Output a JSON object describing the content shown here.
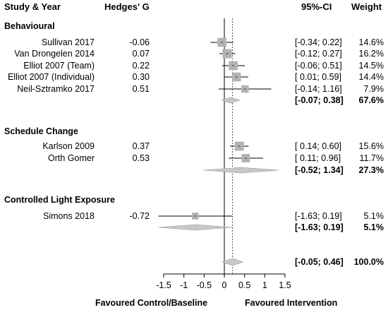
{
  "headers": {
    "study": "Study & Year",
    "effect": "Hedges' G",
    "ci": "95%-CI",
    "weight": "Weight"
  },
  "footer": {
    "left": "Favoured Control/Baseline",
    "right": "Favoured Intervention"
  },
  "chart_data": {
    "type": "forest",
    "xlim": [
      -1.5,
      1.5
    ],
    "x_ticks": [
      "-1.5",
      "-1",
      "-0.5",
      "0",
      "0.5",
      "1",
      "1.5"
    ],
    "x_tick_values": [
      -1.5,
      -1,
      -0.5,
      0,
      0.5,
      1,
      1.5
    ],
    "overall_reference_line": 0.2,
    "groups": [
      {
        "name": "Behavioural",
        "studies": [
          {
            "label": "Sullivan 2017",
            "g": -0.06,
            "g_text": "-0.06",
            "lo": -0.34,
            "hi": 0.22,
            "ci_text": "[-0.34; 0.22]",
            "weight": 14.6,
            "weight_text": "14.6%"
          },
          {
            "label": "Van Drongelen 2014",
            "g": 0.07,
            "g_text": "0.07",
            "lo": -0.12,
            "hi": 0.27,
            "ci_text": "[-0.12; 0.27]",
            "weight": 16.2,
            "weight_text": "16.2%"
          },
          {
            "label": "Elliot 2007 (Team)",
            "g": 0.22,
            "g_text": "0.22",
            "lo": -0.06,
            "hi": 0.51,
            "ci_text": "[-0.06; 0.51]",
            "weight": 14.5,
            "weight_text": "14.5%"
          },
          {
            "label": "Elliot 2007 (Individual)",
            "g": 0.3,
            "g_text": "0.30",
            "lo": 0.01,
            "hi": 0.59,
            "ci_text": "[ 0.01; 0.59]",
            "weight": 14.4,
            "weight_text": "14.4%"
          },
          {
            "label": "Neil-Sztramko 2017",
            "g": 0.51,
            "g_text": "0.51",
            "lo": -0.14,
            "hi": 1.16,
            "ci_text": "[-0.14; 1.16]",
            "weight": 7.9,
            "weight_text": "7.9%"
          }
        ],
        "summary": {
          "est": 0.155,
          "lo": -0.07,
          "hi": 0.38,
          "ci_text": "[-0.07; 0.38]",
          "weight_text": "67.6%"
        }
      },
      {
        "name": "Schedule Change",
        "studies": [
          {
            "label": "Karlson 2009",
            "g": 0.37,
            "g_text": "0.37",
            "lo": 0.14,
            "hi": 0.6,
            "ci_text": "[ 0.14; 0.60]",
            "weight": 15.6,
            "weight_text": "15.6%"
          },
          {
            "label": "Orth Gomer",
            "g": 0.53,
            "g_text": "0.53",
            "lo": 0.11,
            "hi": 0.96,
            "ci_text": "[ 0.11; 0.96]",
            "weight": 11.7,
            "weight_text": "11.7%"
          }
        ],
        "summary": {
          "est": 0.41,
          "lo": -0.52,
          "hi": 1.34,
          "ci_text": "[-0.52; 1.34]",
          "weight_text": "27.3%"
        }
      },
      {
        "name": "Controlled Light Exposure",
        "studies": [
          {
            "label": "Simons 2018",
            "g": -0.72,
            "g_text": "-0.72",
            "lo": -1.63,
            "hi": 0.19,
            "ci_text": "[-1.63; 0.19]",
            "weight": 5.1,
            "weight_text": "5.1%"
          }
        ],
        "summary": {
          "est": -0.72,
          "lo": -1.63,
          "hi": 0.19,
          "ci_text": "[-1.63; 0.19]",
          "weight_text": "5.1%"
        }
      }
    ],
    "overall": {
      "est": 0.205,
      "lo": -0.05,
      "hi": 0.46,
      "ci_text": "[-0.05; 0.46]",
      "weight_text": "100.0%"
    },
    "colors": {
      "box": "#b3b3b3",
      "diamond": "#c8c8c8",
      "line": "#000000",
      "dotted": "#555555"
    }
  }
}
